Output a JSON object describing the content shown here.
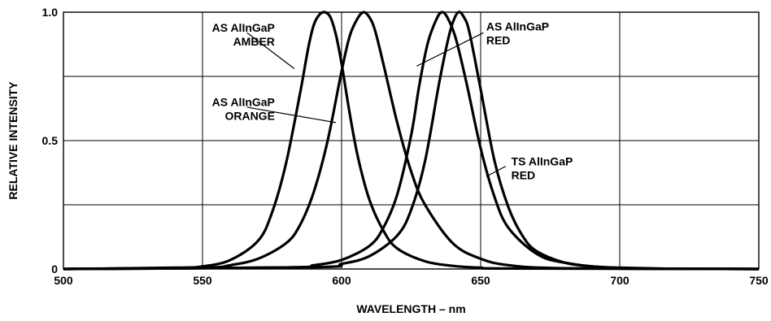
{
  "chart_data": {
    "type": "line",
    "xlabel": "WAVELENGTH – nm",
    "ylabel": "RELATIVE INTENSITY",
    "xlim": [
      500,
      750
    ],
    "ylim": [
      0,
      1.0
    ],
    "x_ticks": [
      500,
      550,
      600,
      650,
      700,
      750
    ],
    "y_ticks": [
      0,
      0.5,
      1.0
    ],
    "x_tick_labels": [
      "500",
      "550",
      "600",
      "650",
      "700",
      "750"
    ],
    "y_tick_labels": [
      "0",
      "0.5",
      "1.0"
    ],
    "grid": true,
    "legend": "none",
    "series": [
      {
        "name": "AS AlInGaP AMBER",
        "label_lines": [
          "AS AlInGaP",
          "AMBER"
        ],
        "x": [
          540,
          550,
          560,
          570,
          575,
          580,
          585,
          588,
          590,
          592,
          594,
          596,
          598,
          600,
          603,
          606,
          610,
          615,
          620,
          630,
          640,
          650,
          660
        ],
        "y": [
          0.005,
          0.01,
          0.035,
          0.11,
          0.22,
          0.41,
          0.68,
          0.86,
          0.95,
          0.99,
          1.0,
          0.98,
          0.91,
          0.8,
          0.6,
          0.43,
          0.27,
          0.15,
          0.08,
          0.03,
          0.012,
          0.005,
          0.002
        ]
      },
      {
        "name": "AS AlInGaP ORANGE",
        "label_lines": [
          "AS AlInGaP",
          "ORANGE"
        ],
        "x": [
          550,
          560,
          570,
          580,
          585,
          590,
          595,
          600,
          603,
          606,
          608,
          610,
          612,
          615,
          620,
          625,
          630,
          640,
          650,
          660,
          680
        ],
        "y": [
          0.005,
          0.015,
          0.04,
          0.1,
          0.17,
          0.3,
          0.5,
          0.77,
          0.91,
          0.98,
          1.0,
          0.98,
          0.93,
          0.8,
          0.57,
          0.38,
          0.25,
          0.1,
          0.04,
          0.015,
          0.003
        ]
      },
      {
        "name": "AS AlInGaP RED",
        "label_lines": [
          "AS AlInGaP",
          "RED"
        ],
        "x": [
          580,
          590,
          600,
          610,
          615,
          620,
          625,
          628,
          631,
          634,
          636,
          638,
          641,
          645,
          650,
          655,
          660,
          670,
          680,
          700
        ],
        "y": [
          0.006,
          0.015,
          0.035,
          0.09,
          0.16,
          0.29,
          0.52,
          0.72,
          0.88,
          0.97,
          1.0,
          0.98,
          0.9,
          0.72,
          0.47,
          0.28,
          0.16,
          0.06,
          0.025,
          0.004
        ]
      },
      {
        "name": "TS AlInGaP RED",
        "label_lines": [
          "TS AlInGaP",
          "RED"
        ],
        "x": [
          590,
          600,
          610,
          620,
          625,
          630,
          635,
          638,
          640,
          642,
          644,
          646,
          650,
          655,
          660,
          665,
          670,
          680,
          690,
          700,
          720
        ],
        "y": [
          0.007,
          0.02,
          0.05,
          0.13,
          0.23,
          0.42,
          0.72,
          0.88,
          0.96,
          1.0,
          0.98,
          0.92,
          0.7,
          0.42,
          0.24,
          0.13,
          0.07,
          0.025,
          0.01,
          0.005,
          0.001
        ]
      }
    ],
    "annotations": [
      {
        "series": 0,
        "text_x": 576,
        "text_top": 0.962,
        "anchor": "end",
        "leader_from": [
          566,
          0.92
        ],
        "leader_to": [
          583,
          0.78
        ]
      },
      {
        "series": 1,
        "text_x": 576,
        "text_top": 0.672,
        "anchor": "end",
        "leader_from": [
          566,
          0.63
        ],
        "leader_to": [
          598,
          0.57
        ]
      },
      {
        "series": 2,
        "text_x": 652,
        "text_top": 0.967,
        "anchor": "start",
        "leader_from": [
          651,
          0.92
        ],
        "leader_to": [
          627,
          0.79
        ]
      },
      {
        "series": 3,
        "text_x": 661,
        "text_top": 0.442,
        "anchor": "start",
        "leader_from": [
          659,
          0.4
        ],
        "leader_to": [
          652,
          0.36
        ]
      }
    ]
  }
}
